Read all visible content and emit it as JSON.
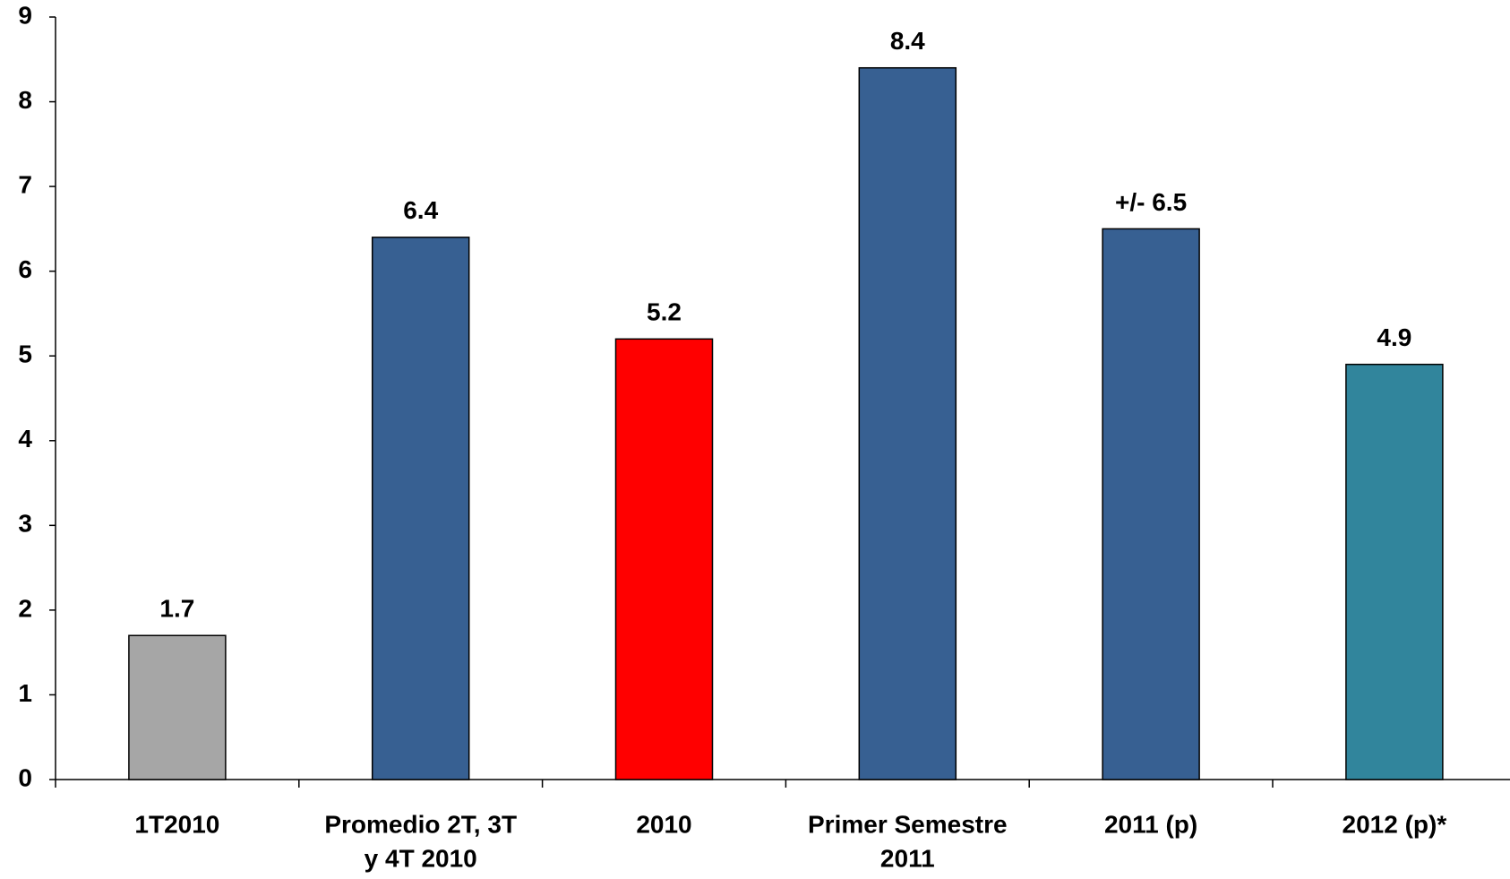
{
  "chart_data": {
    "type": "bar",
    "categories": [
      [
        "1T2010"
      ],
      [
        "Promedio 2T, 3T",
        "y 4T 2010"
      ],
      [
        "2010"
      ],
      [
        "Primer Semestre",
        "2011"
      ],
      [
        "2011 (p)"
      ],
      [
        "2012 (p)*"
      ]
    ],
    "values": [
      1.7,
      6.4,
      5.2,
      8.4,
      6.5,
      4.9
    ],
    "value_labels": [
      "1.7",
      "6.4",
      "5.2",
      "8.4",
      "+/- 6.5",
      "4.9"
    ],
    "colors": [
      "#a6a6a6",
      "#376092",
      "#ff0000",
      "#376092",
      "#376092",
      "#31859c"
    ],
    "ylim": [
      0,
      9
    ],
    "yticks": [
      0,
      1,
      2,
      3,
      4,
      5,
      6,
      7,
      8,
      9
    ],
    "grid": false
  }
}
